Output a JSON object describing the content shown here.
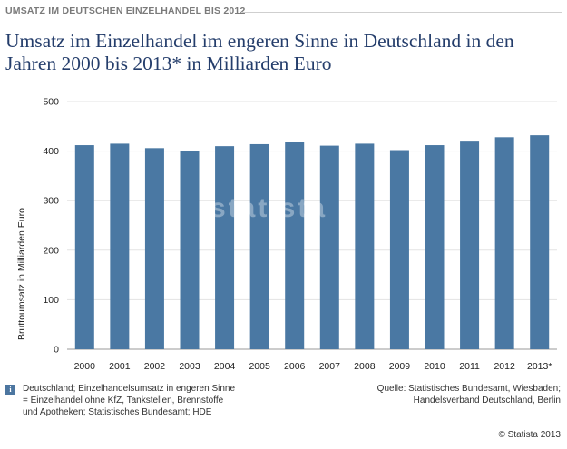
{
  "header": {
    "kicker": "UMSATZ IM DEUTSCHEN EINZELHANDEL BIS 2012",
    "title": "Umsatz im Einzelhandel im engeren Sinne in Deutschland in den Jahren 2000 bis 2013* in Milliarden Euro"
  },
  "chart_data": {
    "type": "bar",
    "title": "Umsatz im Einzelhandel im engeren Sinne in Deutschland in den Jahren 2000 bis 2013* in Milliarden Euro",
    "xlabel": "",
    "ylabel": "Bruttoumsatz in Milliarden Euro",
    "categories": [
      "2000",
      "2001",
      "2002",
      "2003",
      "2004",
      "2005",
      "2006",
      "2007",
      "2008",
      "2009",
      "2010",
      "2011",
      "2012",
      "2013*"
    ],
    "values": [
      412,
      415,
      406,
      401,
      410,
      414,
      418,
      411,
      415,
      402,
      412,
      421,
      428,
      432
    ],
    "ylim": [
      0,
      500
    ],
    "yticks": [
      0,
      100,
      200,
      300,
      400,
      500
    ],
    "grid": true,
    "bar_color": "#4a78a3"
  },
  "watermark": "statista",
  "footer": {
    "info_icon": "i",
    "note": "Deutschland; Einzelhandelsumsatz in engeren Sinne = Einzelhandel ohne KfZ, Tankstellen, Brennstoffe und Apotheken; Statistisches Bundesamt; HDE",
    "source": "Quelle: Statistisches Bundesamt, Wiesbaden; Handelsverband Deutschland, Berlin",
    "copyright": "© Statista 2013"
  }
}
